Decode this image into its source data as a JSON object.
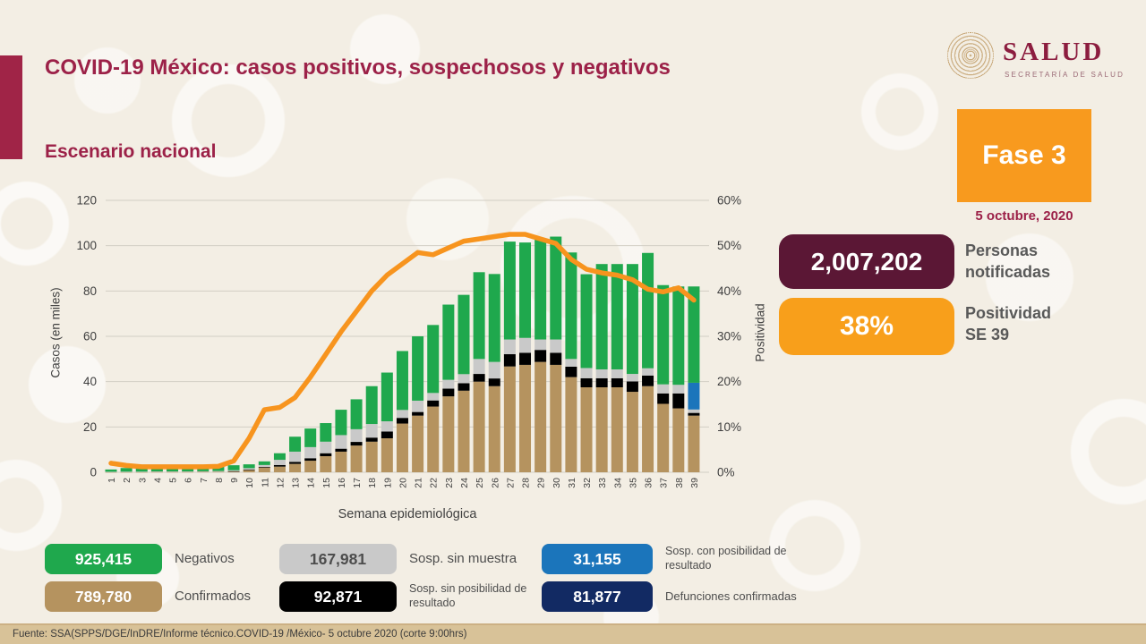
{
  "header": {
    "title": "COVID-19 México: casos positivos, sospechosos y negativos",
    "subtitle": "Escenario nacional",
    "logo_wordmark": "SALUD",
    "logo_sub": "SECRETARÍA DE SALUD",
    "phase_label": "Fase 3",
    "phase_date": "5 octubre, 2020",
    "accent_color": "#9c2148",
    "phase_color": "#f89a1e"
  },
  "kpis": [
    {
      "value": "2,007,202",
      "label_line1": "Personas",
      "label_line2": "notificadas",
      "color": "#5b1735"
    },
    {
      "value": "38%",
      "label_line1": "Positividad",
      "label_line2": "SE 39",
      "color": "#f89f1b"
    }
  ],
  "chart_data": {
    "type": "bar",
    "subtype": "stacked-bars-with-line",
    "x": [
      1,
      2,
      3,
      4,
      5,
      6,
      7,
      8,
      9,
      10,
      11,
      12,
      13,
      14,
      15,
      16,
      17,
      18,
      19,
      20,
      21,
      22,
      23,
      24,
      25,
      26,
      27,
      28,
      29,
      30,
      31,
      32,
      33,
      34,
      35,
      36,
      37,
      38,
      39
    ],
    "xlabel": "Semana epidemiológica",
    "ylabel_left": "Casos (en miles)",
    "ylabel_right": "Positividad",
    "ylim_left": [
      0,
      120
    ],
    "ylim_right_pct": [
      0,
      60
    ],
    "y_ticks_left": [
      0,
      20,
      40,
      60,
      80,
      100,
      120
    ],
    "y_ticks_right": [
      "0%",
      "10%",
      "20%",
      "30%",
      "40%",
      "50%",
      "60%"
    ],
    "grid": true,
    "legend_position": "bottom",
    "series": [
      {
        "name": "Confirmados",
        "color": "#b5935f",
        "values": [
          0.1,
          0.1,
          0.1,
          0.15,
          0.15,
          0.15,
          0.2,
          0.2,
          0.4,
          1.0,
          2.1,
          2.5,
          3.7,
          5.1,
          7.1,
          9.1,
          11.8,
          13.5,
          15.0,
          21.5,
          25.0,
          29.0,
          33.5,
          36.0,
          40.0,
          38.0,
          46.7,
          47.4,
          48.7,
          47.4,
          42.0,
          37.5,
          37.5,
          37.5,
          35.5,
          38.0,
          30.2,
          28.2,
          25.0
        ]
      },
      {
        "name": "Sosp. sin posibilidad de resultado",
        "color": "#000000",
        "values": [
          0.02,
          0.02,
          0.03,
          0.03,
          0.03,
          0.03,
          0.04,
          0.05,
          0.1,
          0.2,
          0.3,
          0.7,
          0.9,
          1.1,
          1.3,
          1.3,
          1.6,
          1.8,
          3.0,
          2.5,
          1.6,
          2.7,
          3.4,
          3.3,
          3.4,
          3.4,
          5.4,
          5.3,
          5.3,
          5.3,
          4.6,
          4.0,
          4.0,
          4.0,
          4.6,
          4.7,
          4.6,
          6.6,
          1.2
        ]
      },
      {
        "name": "Sosp. sin muestra",
        "color": "#c9c9c9",
        "values": [
          0.1,
          0.15,
          0.15,
          0.2,
          0.2,
          0.2,
          0.2,
          0.3,
          0.4,
          0.6,
          0.8,
          2.3,
          4.5,
          4.9,
          5.1,
          6.0,
          5.6,
          6.0,
          4.5,
          3.5,
          5.0,
          3.3,
          3.9,
          4.0,
          6.6,
          7.3,
          6.5,
          6.6,
          4.6,
          5.9,
          3.4,
          4.5,
          3.9,
          3.9,
          3.3,
          3.2,
          4.0,
          3.8,
          1.5
        ]
      },
      {
        "name": "Sosp. con posibilidad de resultado",
        "color": "#1b75bb",
        "values": [
          0,
          0,
          0,
          0,
          0,
          0,
          0,
          0,
          0,
          0,
          0,
          0,
          0,
          0,
          0,
          0,
          0,
          0,
          0,
          0,
          0,
          0,
          0,
          0,
          0,
          0,
          0,
          0,
          0,
          0,
          0,
          0,
          0,
          0,
          0,
          0,
          0,
          0,
          11.8
        ]
      },
      {
        "name": "Negativos",
        "color": "#1fa84d",
        "values": [
          1.0,
          1.6,
          1.7,
          1.8,
          1.9,
          1.9,
          1.9,
          1.9,
          2.2,
          1.7,
          1.6,
          2.9,
          6.6,
          8.2,
          8.2,
          11.2,
          13.2,
          16.7,
          21.5,
          26.0,
          28.4,
          30.0,
          33.2,
          35.0,
          38.3,
          38.8,
          43.2,
          42.1,
          44.0,
          45.4,
          47.0,
          41.4,
          46.5,
          46.5,
          48.5,
          50.9,
          43.8,
          43.4,
          42.5
        ]
      }
    ],
    "line": {
      "name": "Positividad",
      "color": "#f7941e",
      "values_pct": [
        2,
        1.5,
        1.2,
        1.2,
        1.2,
        1.2,
        1.2,
        1.3,
        2.5,
        7.5,
        13.8,
        14.3,
        16.5,
        21,
        26,
        31,
        35.5,
        40,
        43.5,
        46,
        48.5,
        48,
        49.5,
        51,
        51.5,
        52,
        52.5,
        52.5,
        51.5,
        50.5,
        47,
        44.8,
        44,
        43.5,
        42.5,
        40.4,
        39.8,
        40.7,
        38
      ]
    }
  },
  "legend": [
    {
      "value": "925,415",
      "label": "Negativos",
      "bg": "#1fa84d",
      "fg": "#ffffff"
    },
    {
      "value": "789,780",
      "label": "Confirmados",
      "bg": "#b5935f",
      "fg": "#ffffff"
    },
    {
      "value": "167,981",
      "label": "Sosp. sin muestra",
      "bg": "#c9c9c9",
      "fg": "#4d4d4d"
    },
    {
      "value": "92,871",
      "label": "Sosp. sin posibilidad de resultado",
      "bg": "#000000",
      "fg": "#ffffff"
    },
    {
      "value": "31,155",
      "label": "Sosp. con posibilidad de resultado",
      "bg": "#1b75bb",
      "fg": "#ffffff"
    },
    {
      "value": "81,877",
      "label": "Defunciones confirmadas",
      "bg": "#122a63",
      "fg": "#ffffff"
    }
  ],
  "footer": {
    "source": "Fuente: SSA(SPPS/DGE/InDRE/Informe técnico.COVID-19 /México- 5 octubre 2020 (corte 9:00hrs)"
  }
}
